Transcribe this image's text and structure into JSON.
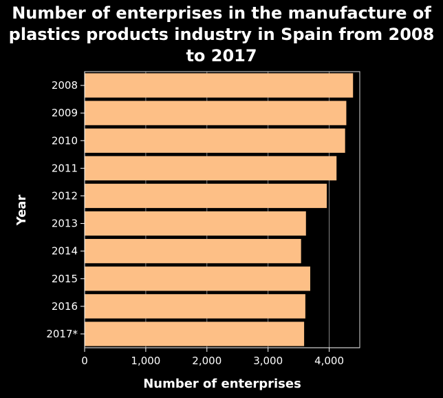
{
  "chart_data": {
    "type": "bar",
    "orientation": "horizontal",
    "title": "Number of enterprises in the manufacture of plastics products industry in Spain from 2008 to 2017",
    "xlabel": "Number of enterprises",
    "ylabel": "Year",
    "categories": [
      "2008",
      "2009",
      "2010",
      "2011",
      "2012",
      "2013",
      "2014",
      "2015",
      "2016",
      "2017*"
    ],
    "values": [
      4390,
      4280,
      4260,
      4120,
      3960,
      3620,
      3540,
      3690,
      3610,
      3590
    ],
    "xlim": [
      0,
      4500
    ],
    "xticks": [
      0,
      1000,
      2000,
      3000,
      4000
    ],
    "xtick_labels": [
      "0",
      "1,000",
      "2,000",
      "3,000",
      "4,000"
    ],
    "grid": "vertical",
    "colors": {
      "bar": "#fdbf86",
      "background": "#000000",
      "text": "#ffffff",
      "grid": "#888888"
    }
  }
}
